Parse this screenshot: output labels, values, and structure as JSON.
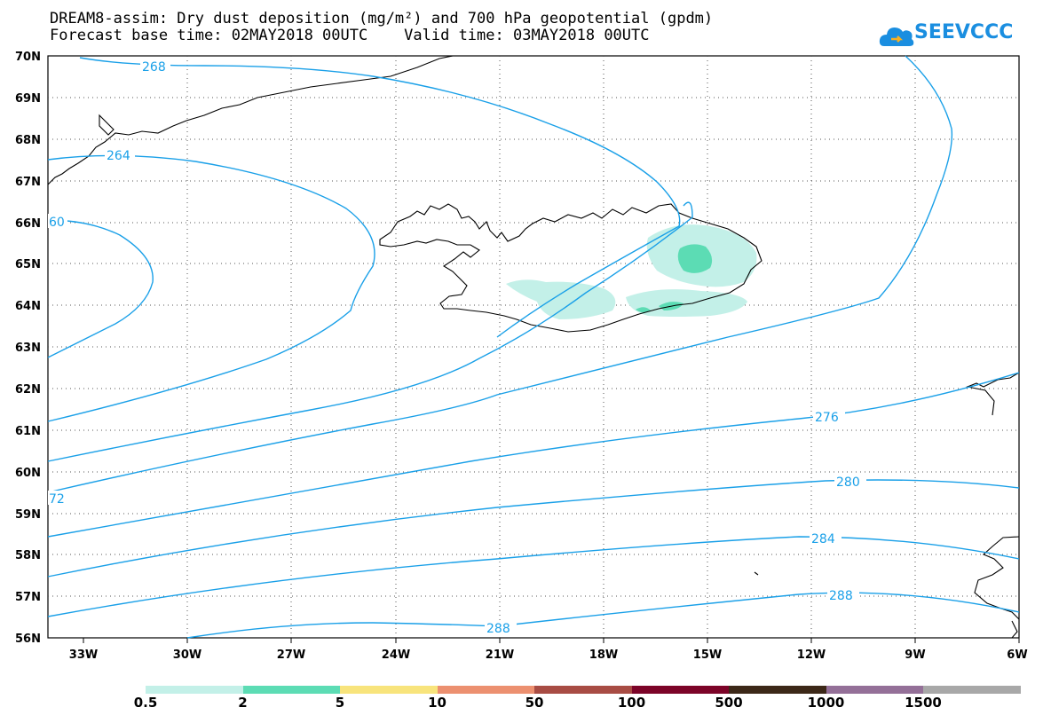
{
  "header": {
    "title_line1": "DREAM8-assim: Dry dust deposition (mg/m²) and 700 hPa geopotential (gpdm)",
    "title_line2": "Forecast base time: 02MAY2018 00UTC    Valid time: 03MAY2018 00UTC",
    "logo_text": "SEEVCCC",
    "logo_icon": "cloud-icon"
  },
  "map": {
    "lat_labels": [
      "70N",
      "69N",
      "68N",
      "67N",
      "66N",
      "65N",
      "64N",
      "63N",
      "62N",
      "61N",
      "60N",
      "59N",
      "58N",
      "57N",
      "56N"
    ],
    "lon_labels": [
      "33W",
      "30W",
      "27W",
      "24W",
      "21W",
      "18W",
      "15W",
      "12W",
      "9W",
      "6W"
    ],
    "contour_color": "#1aa0e8",
    "contour_labels": [
      "268",
      "264",
      "60",
      "276",
      "72",
      "280",
      "284",
      "288",
      "288"
    ]
  },
  "legend": {
    "thresholds": [
      "0.5",
      "2",
      "5",
      "10",
      "50",
      "100",
      "500",
      "1000",
      "1500"
    ],
    "colors": [
      "#c3f0e8",
      "#5cdcb4",
      "#f8e47c",
      "#ec9070",
      "#a84c44",
      "#7c0428",
      "#3c2818",
      "#947098",
      "#a8a8a8"
    ]
  }
}
